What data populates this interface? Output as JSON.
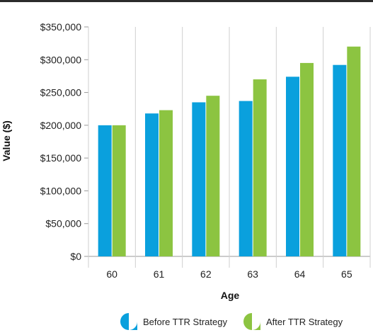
{
  "chart_data": {
    "type": "bar",
    "categories": [
      "60",
      "61",
      "62",
      "63",
      "64",
      "65"
    ],
    "series": [
      {
        "name": "Before TTR Strategy",
        "color": "#0aa0dd",
        "values": [
          200000,
          218000,
          235000,
          237000,
          274000,
          292000
        ]
      },
      {
        "name": "After TTR Strategy",
        "color": "#8cc441",
        "values": [
          200000,
          223000,
          245000,
          270000,
          295000,
          320000
        ]
      }
    ],
    "xlabel": "Age",
    "ylabel": "Value ($)",
    "ylim": [
      0,
      350000
    ],
    "yticks": [
      "$0",
      "$50,000",
      "$100,000",
      "$150,000",
      "$200,000",
      "$250,000",
      "$300,000",
      "$350,000"
    ],
    "grid": "vertical separators only",
    "legend_position": "bottom"
  }
}
